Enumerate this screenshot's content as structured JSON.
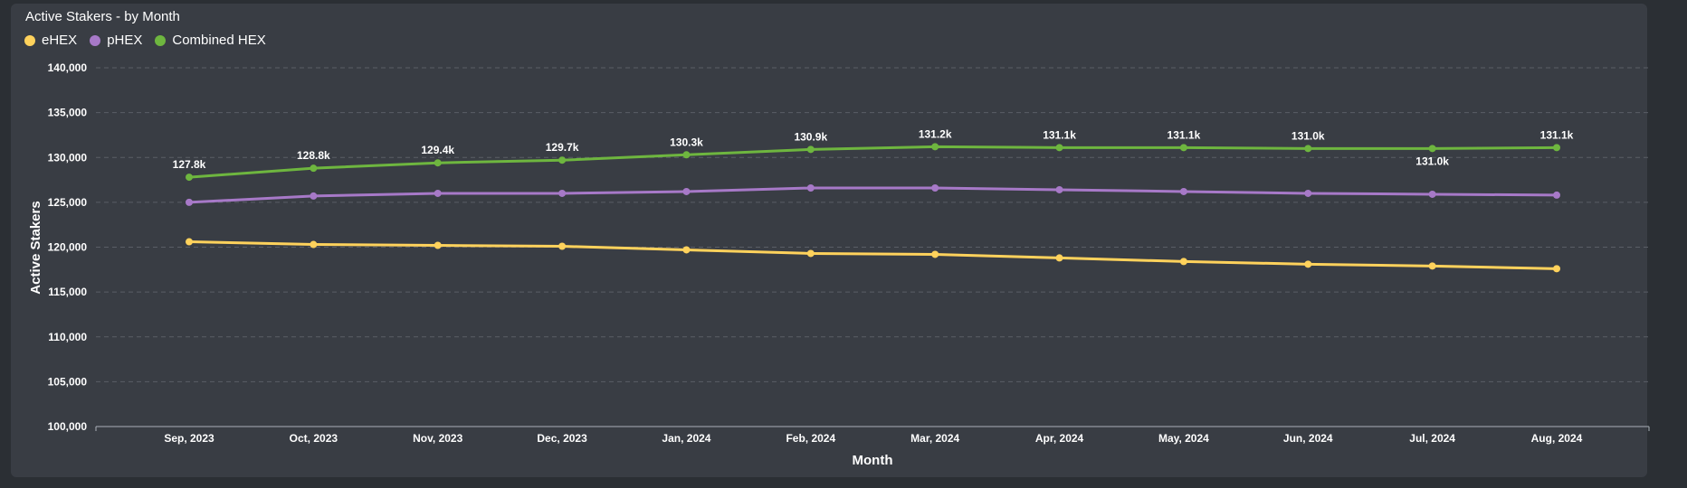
{
  "chart_title": "Active Stakers - by Month",
  "colors": {
    "eHEX": "#ffd25c",
    "pHEX": "#a779c8",
    "Combined HEX": "#6eb63f",
    "grid": "#5a5e66",
    "axis": "#aab0b8"
  },
  "chart_data": {
    "type": "line",
    "title": "Active Stakers - by Month",
    "xlabel": "Month",
    "ylabel": "Active Stakers",
    "ylim": [
      100000,
      140000
    ],
    "yticks": [
      100000,
      105000,
      110000,
      115000,
      120000,
      125000,
      130000,
      135000,
      140000
    ],
    "ytick_labels": [
      "100,000",
      "105,000",
      "110,000",
      "115,000",
      "120,000",
      "125,000",
      "130,000",
      "135,000",
      "140,000"
    ],
    "categories": [
      "Sep, 2023",
      "Oct, 2023",
      "Nov, 2023",
      "Dec, 2023",
      "Jan, 2024",
      "Feb, 2024",
      "Mar, 2024",
      "Apr, 2024",
      "May, 2024",
      "Jun, 2024",
      "Jul, 2024",
      "Aug, 2024"
    ],
    "grid": true,
    "legend_position": "top-left",
    "series": [
      {
        "name": "eHEX",
        "values": [
          120600,
          120300,
          120200,
          120100,
          119700,
          119300,
          119200,
          118800,
          118400,
          118100,
          117900,
          117600
        ]
      },
      {
        "name": "pHEX",
        "values": [
          125000,
          125700,
          126000,
          126000,
          126200,
          126600,
          126600,
          126400,
          126200,
          126000,
          125900,
          125800
        ]
      },
      {
        "name": "Combined HEX",
        "values": [
          127800,
          128800,
          129400,
          129700,
          130300,
          130900,
          131200,
          131100,
          131100,
          131000,
          131000,
          131100
        ],
        "data_labels": [
          "127.8k",
          "128.8k",
          "129.4k",
          "129.7k",
          "130.3k",
          "130.9k",
          "131.2k",
          "131.1k",
          "131.1k",
          "131.0k",
          "131.0k",
          "131.1k"
        ]
      }
    ]
  }
}
